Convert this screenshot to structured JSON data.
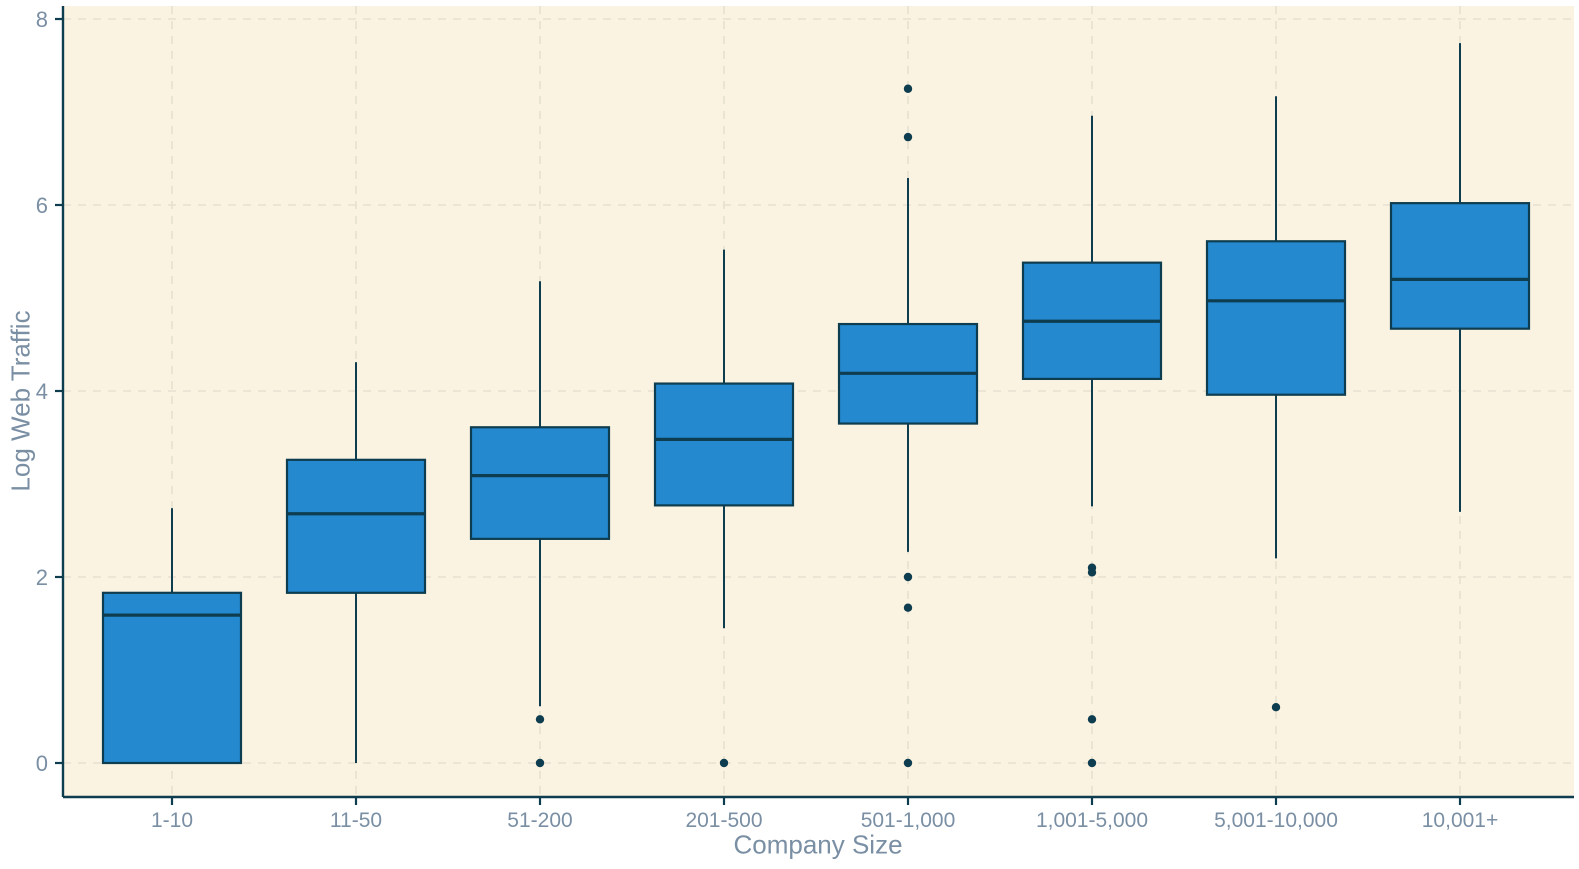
{
  "chart_data": {
    "type": "boxplot",
    "title": "",
    "xlabel": "Company Size",
    "ylabel": "Log Web Traffic",
    "ylim": [
      0,
      8
    ],
    "yticks": [
      0,
      2,
      4,
      6,
      8
    ],
    "grid": "dashed, horizontal at y-ticks and vertical at category centers",
    "legend": "none",
    "categories": [
      "1-10",
      "11-50",
      "51-200",
      "201-500",
      "501-1,000",
      "1,001-5,000",
      "5,001-10,000",
      "10,001+"
    ],
    "boxes": [
      {
        "category": "1-10",
        "whisker_low": 0.0,
        "q1": 0.0,
        "median": 1.59,
        "q3": 1.83,
        "whisker_high": 2.74,
        "outliers": []
      },
      {
        "category": "11-50",
        "whisker_low": 0.0,
        "q1": 1.83,
        "median": 2.68,
        "q3": 3.26,
        "whisker_high": 4.31,
        "outliers": []
      },
      {
        "category": "51-200",
        "whisker_low": 0.61,
        "q1": 2.41,
        "median": 3.09,
        "q3": 3.61,
        "whisker_high": 5.18,
        "outliers": [
          0.47,
          0.0
        ]
      },
      {
        "category": "201-500",
        "whisker_low": 1.45,
        "q1": 2.77,
        "median": 3.48,
        "q3": 4.08,
        "whisker_high": 5.52,
        "outliers": [
          0.0
        ]
      },
      {
        "category": "501-1,000",
        "whisker_low": 2.27,
        "q1": 3.65,
        "median": 4.19,
        "q3": 4.72,
        "whisker_high": 6.29,
        "outliers": [
          7.25,
          6.73,
          2.0,
          1.67,
          0.0
        ]
      },
      {
        "category": "1,001-5,000",
        "whisker_low": 2.76,
        "q1": 4.13,
        "median": 4.75,
        "q3": 5.38,
        "whisker_high": 6.96,
        "outliers": [
          2.1,
          2.05,
          0.47,
          0.0
        ]
      },
      {
        "category": "5,001-10,000",
        "whisker_low": 2.2,
        "q1": 3.96,
        "median": 4.97,
        "q3": 5.61,
        "whisker_high": 7.17,
        "outliers": [
          0.6
        ]
      },
      {
        "category": "10,001+",
        "whisker_low": 2.7,
        "q1": 4.67,
        "median": 5.2,
        "q3": 6.02,
        "whisker_high": 7.74,
        "outliers": []
      }
    ],
    "colors": {
      "box_fill": "#2589d0",
      "box_stroke": "#0e3d4f",
      "median_line": "#0e3d4f",
      "whisker": "#0e3d4f",
      "outlier": "#0e3d4f",
      "panel_background": "#faf3e2",
      "gridline": "#e7e0cf",
      "axis_line": "#0e3d4f",
      "axis_text": "#7a8fa4"
    }
  }
}
